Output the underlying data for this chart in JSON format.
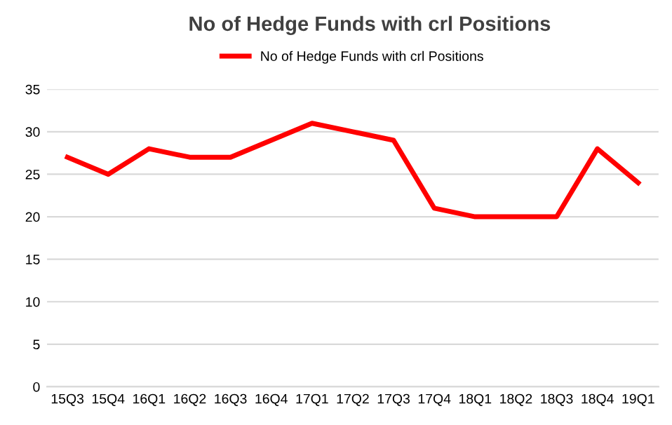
{
  "chart_data": {
    "type": "line",
    "title": "No of Hedge Funds with crl Positions",
    "categories": [
      "15Q3",
      "15Q4",
      "16Q1",
      "16Q2",
      "16Q3",
      "16Q4",
      "17Q1",
      "17Q2",
      "17Q3",
      "17Q4",
      "18Q1",
      "18Q2",
      "18Q3",
      "18Q4",
      "19Q1"
    ],
    "series": [
      {
        "name": "No of Hedge Funds with crl Positions",
        "color": "#ff0000",
        "values": [
          27,
          25,
          28,
          27,
          27,
          29,
          31,
          30,
          29,
          21,
          20,
          20,
          20,
          28,
          24
        ]
      }
    ],
    "ylim": [
      0,
      35
    ],
    "yticks": [
      0,
      5,
      10,
      15,
      20,
      25,
      30,
      35
    ],
    "grid": "y",
    "legend": "top",
    "marker": "none",
    "line_style": "solid"
  }
}
